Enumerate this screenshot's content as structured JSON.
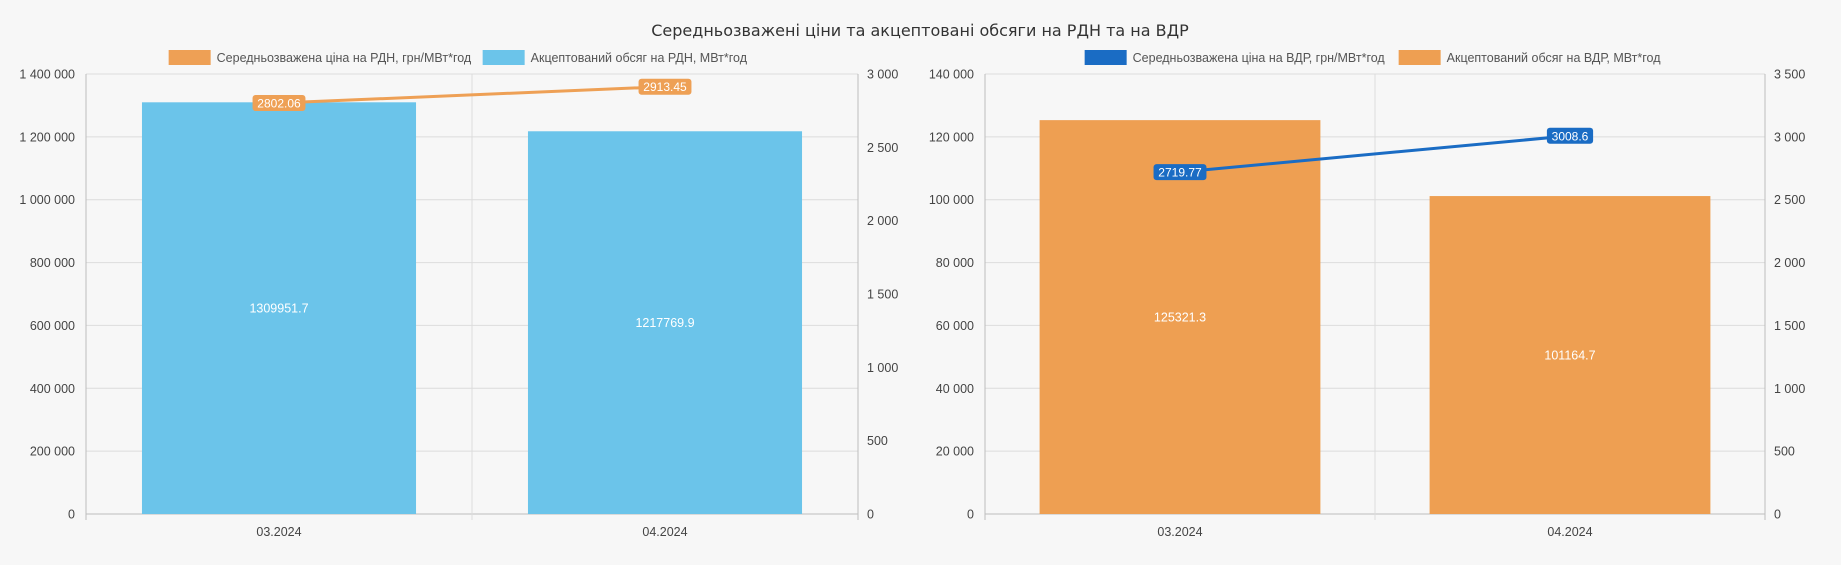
{
  "title": "Середньозважені ціни та акцептовані обсяги на РДН та на ВДР",
  "chart_data": [
    {
      "type": "bar",
      "name": "rdn",
      "categories": [
        "03.2024",
        "04.2024"
      ],
      "bar_series": {
        "name": "Акцептований обсяг на РДН, МВт*год",
        "values": [
          1309951.7,
          1217769.9
        ],
        "labels": [
          "1309951.7",
          "1217769.9"
        ],
        "color": "#6bc4ea"
      },
      "line_series": {
        "name": "Середньозважена ціна на РДН, грн/МВт*год",
        "values": [
          2802.06,
          2913.45
        ],
        "labels": [
          "2802.06",
          "2913.45"
        ],
        "color": "#eea055"
      },
      "legend_order": [
        "line_series",
        "bar_series"
      ],
      "y_left": {
        "ylim": [
          0,
          1400000
        ],
        "ticks": [
          0,
          200000,
          400000,
          600000,
          800000,
          1000000,
          1200000,
          1400000
        ],
        "tick_labels": [
          "0",
          "200 000",
          "400 000",
          "600 000",
          "800 000",
          "1 000 000",
          "1 200 000",
          "1 400 000"
        ]
      },
      "y_right": {
        "ylim": [
          0,
          3000
        ],
        "ticks": [
          0,
          500,
          1000,
          1500,
          2000,
          2500,
          3000
        ],
        "tick_labels": [
          "0",
          "500",
          "1 000",
          "1 500",
          "2 000",
          "2 500",
          "3 000"
        ]
      },
      "grid": true,
      "legend_position": "top"
    },
    {
      "type": "bar",
      "name": "vdr",
      "categories": [
        "03.2024",
        "04.2024"
      ],
      "bar_series": {
        "name": "Акцептований обсяг на ВДР, МВт*год",
        "values": [
          125321.3,
          101164.7
        ],
        "labels": [
          "125321.3",
          "101164.7"
        ],
        "color": "#ee9f52"
      },
      "line_series": {
        "name": "Середньозважена ціна на ВДР, грн/МВт*год",
        "values": [
          2719.77,
          3008.6
        ],
        "labels": [
          "2719.77",
          "3008.6"
        ],
        "color": "#1a6cc4"
      },
      "legend_order": [
        "line_series",
        "bar_series"
      ],
      "y_left": {
        "ylim": [
          0,
          140000
        ],
        "ticks": [
          0,
          20000,
          40000,
          60000,
          80000,
          100000,
          120000,
          140000
        ],
        "tick_labels": [
          "0",
          "20 000",
          "40 000",
          "60 000",
          "80 000",
          "100 000",
          "120 000",
          "140 000"
        ]
      },
      "y_right": {
        "ylim": [
          0,
          3500
        ],
        "ticks": [
          0,
          500,
          1000,
          1500,
          2000,
          2500,
          3000,
          3500
        ],
        "tick_labels": [
          "0",
          "500",
          "1 000",
          "1 500",
          "2 000",
          "2 500",
          "3 000",
          "3 500"
        ]
      },
      "grid": true,
      "legend_position": "top"
    }
  ]
}
